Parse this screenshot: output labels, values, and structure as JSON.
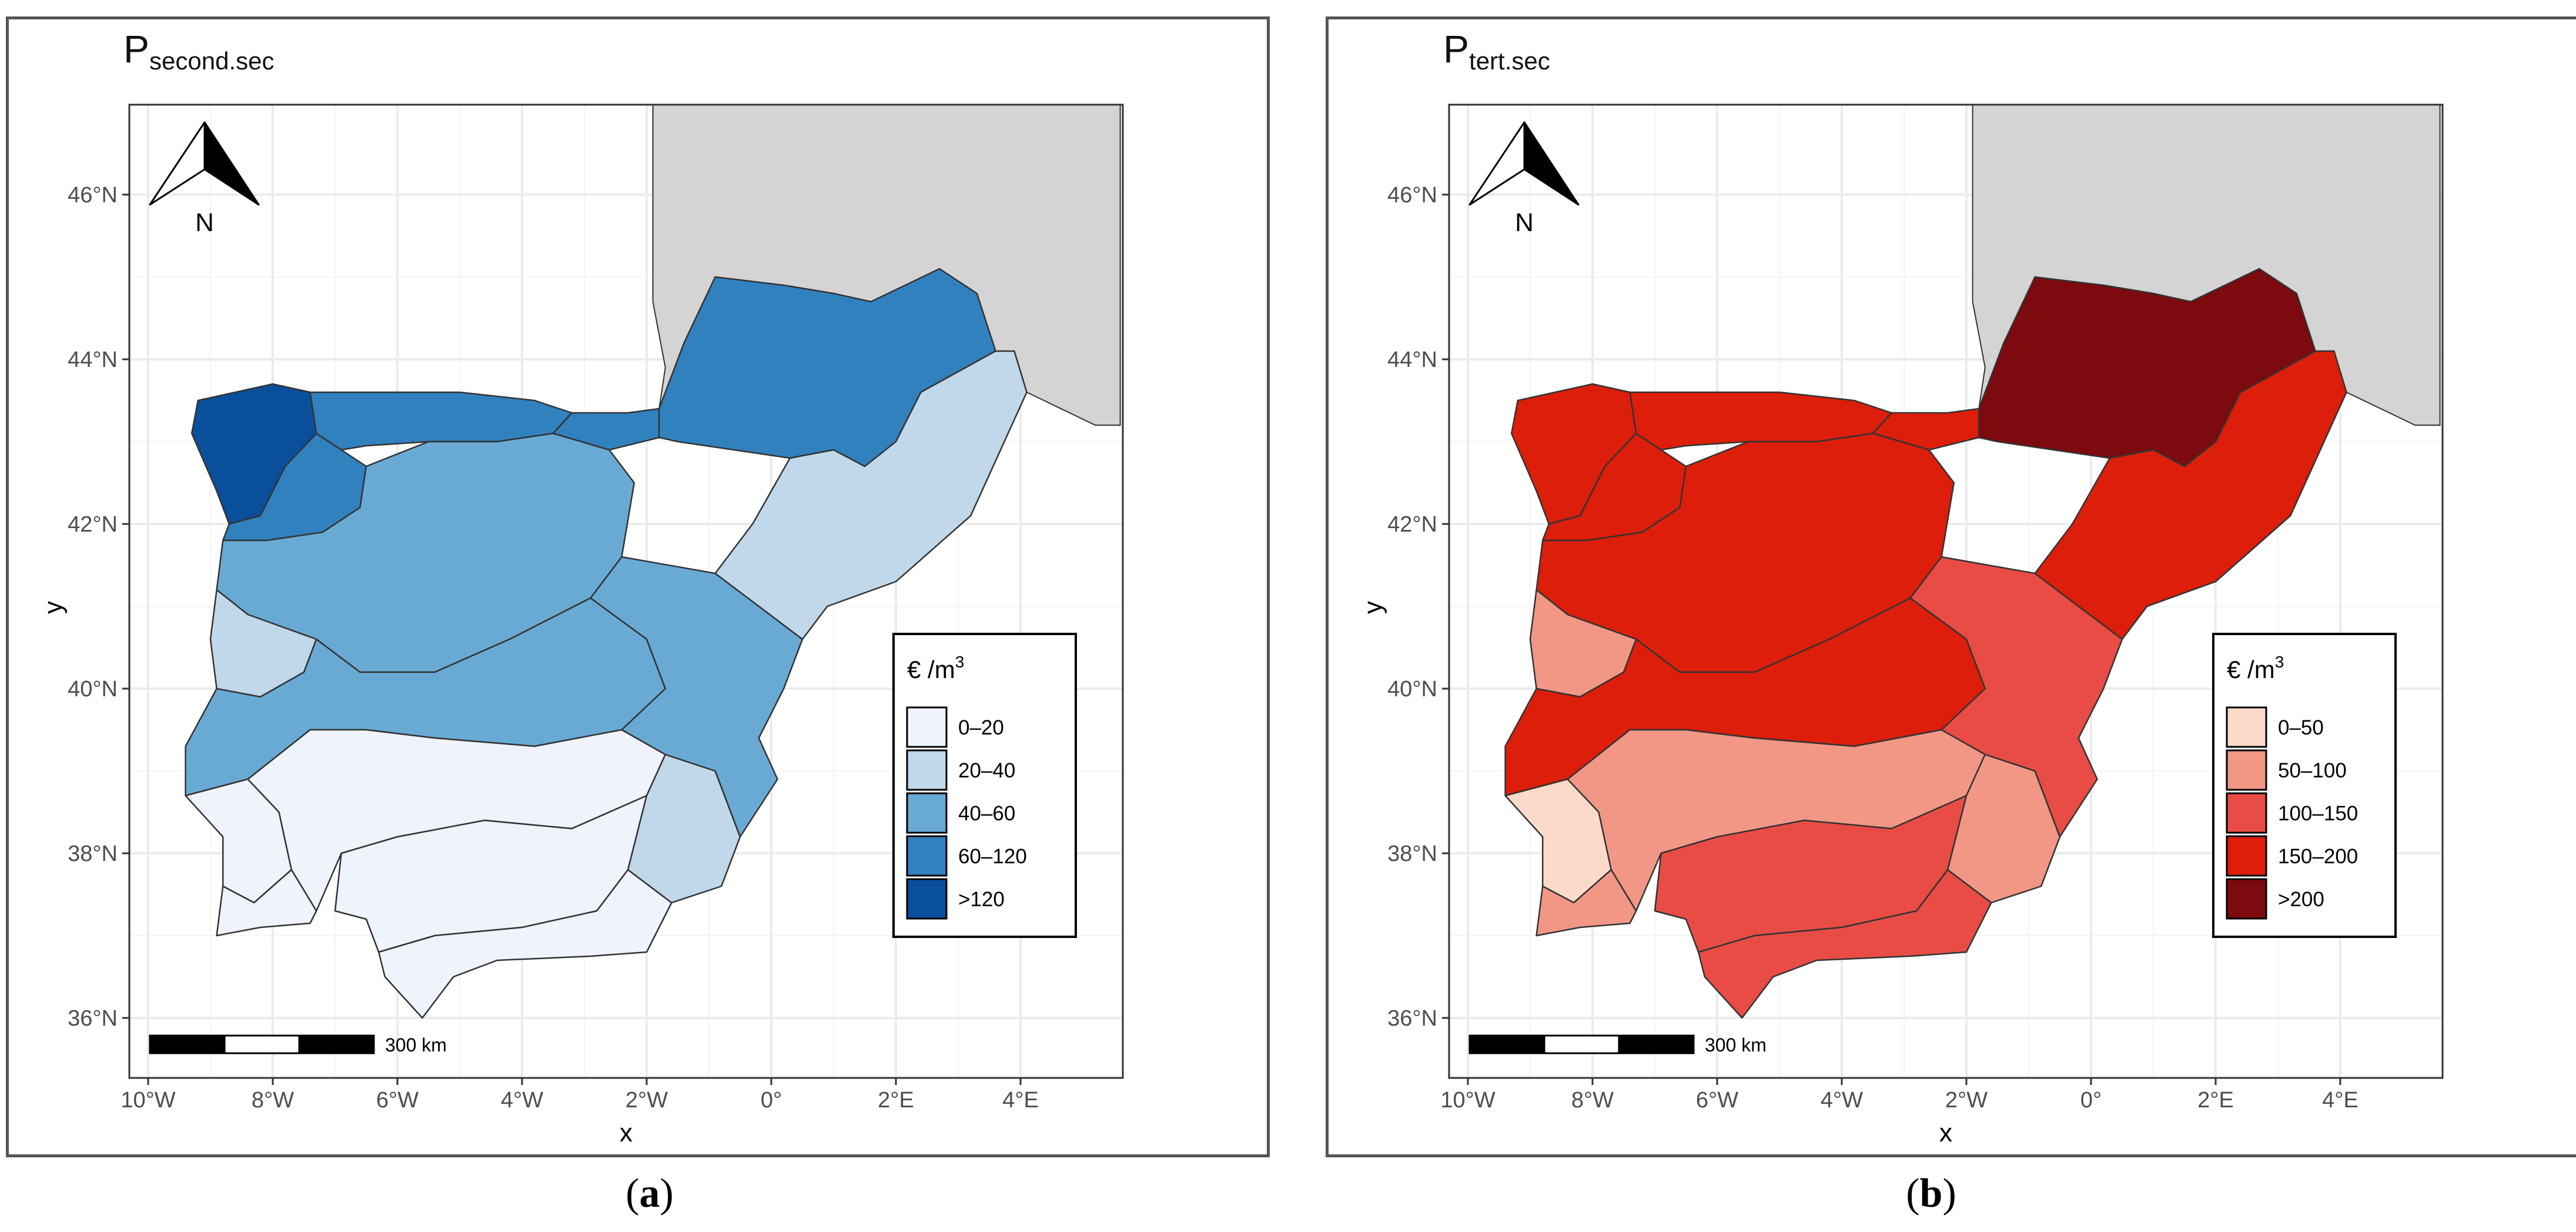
{
  "maps": [
    {
      "id": "a",
      "caption": "a",
      "title_main": "P",
      "title_sub": "second.sec",
      "legend_title_prefix": "€ /m",
      "legend_title_exp": "3",
      "legend": [
        {
          "label": "0–20",
          "color": "#eff3fc"
        },
        {
          "label": "20–40",
          "color": "#c0d8ea"
        },
        {
          "label": "40–60",
          "color": "#69aad5"
        },
        {
          "label": "60–120",
          "color": "#3181bf"
        },
        {
          "label": ">120",
          "color": "#0a4f9c"
        }
      ]
    },
    {
      "id": "b",
      "caption": "b",
      "title_main": "P",
      "title_sub": "tert.sec",
      "legend_title_prefix": "€ /m",
      "legend_title_exp": "3",
      "legend": [
        {
          "label": "0–50",
          "color": "#fcdaca"
        },
        {
          "label": "50–100",
          "color": "#f29786"
        },
        {
          "label": "100–150",
          "color": "#e84c45"
        },
        {
          "label": "150–200",
          "color": "#dc1e0a"
        },
        {
          "label": ">200",
          "color": "#7c0a0e"
        }
      ]
    }
  ],
  "x_ticks": [
    "10°W",
    "8°W",
    "6°W",
    "4°W",
    "2°W",
    "0°",
    "2°E",
    "4°E"
  ],
  "y_ticks": [
    "46°N",
    "44°N",
    "42°N",
    "40°N",
    "38°N",
    "36°N"
  ],
  "x_label": "x",
  "y_label": "y",
  "north_label": "N",
  "scale_label": "300 km",
  "colors": {
    "land_france": "#d4d4d4",
    "grid": "#ebebeb",
    "border": "#333333"
  }
}
